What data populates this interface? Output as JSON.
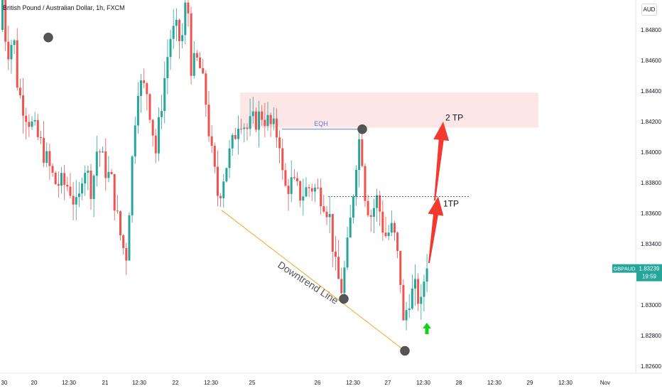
{
  "header": {
    "title": "British Pound / Australian Dollar, 1h, FXCM"
  },
  "axis": {
    "currency": "AUD",
    "y_ticks": [
      "1.84800",
      "1.84600",
      "1.84400",
      "1.84200",
      "1.84000",
      "1.83800",
      "1.83600",
      "1.83400",
      "1.83200",
      "1.83000",
      "1.82800",
      "1.82600"
    ],
    "y_tick_values": [
      1.848,
      1.846,
      1.844,
      1.842,
      1.84,
      1.838,
      1.836,
      1.834,
      1.832,
      1.83,
      1.828,
      1.826
    ],
    "x_ticks": [
      "30",
      "20",
      "12:30",
      "21",
      "12:30",
      "22",
      "12:30",
      "25",
      "26",
      "12:30",
      "27",
      "12:30",
      "28",
      "12:30",
      "29",
      "12:30",
      "Nov"
    ]
  },
  "current_price": {
    "symbol": "GBPAUD",
    "price": "1.83239",
    "countdown": "19:59"
  },
  "annotations": {
    "eqh": "EQH",
    "tp1": "1TP",
    "tp2": "2 TP",
    "trendline": "Downtrend Line"
  },
  "colors": {
    "bull": "#26a69a",
    "bear": "#ef5350",
    "zone": "#fde2e2",
    "arrow": "#f23a2f",
    "trendline": "#f5a623",
    "eqh": "#5b7bd5",
    "buy_arrow": "#11d11c"
  },
  "chart_data": {
    "type": "candlestick",
    "title": "British Pound / Australian Dollar, 1h, FXCM",
    "ylim": [
      1.8252,
      1.8502
    ],
    "zone": {
      "top": 1.8439,
      "bottom": 1.8416
    },
    "levels": {
      "eqh": 1.8415,
      "tp1": 1.8371
    },
    "trendline": {
      "from": {
        "price": 1.8362
      },
      "to": {
        "price": 1.827
      }
    },
    "arrow_targets": [
      1.8371,
      1.8419
    ],
    "swing_points": [
      1.8475,
      1.8516,
      1.8415,
      1.8304,
      1.827
    ],
    "candles_summary": {
      "open": 1.848,
      "period_high": 1.8516,
      "period_low": 1.827,
      "last_close": 1.83239
    }
  }
}
